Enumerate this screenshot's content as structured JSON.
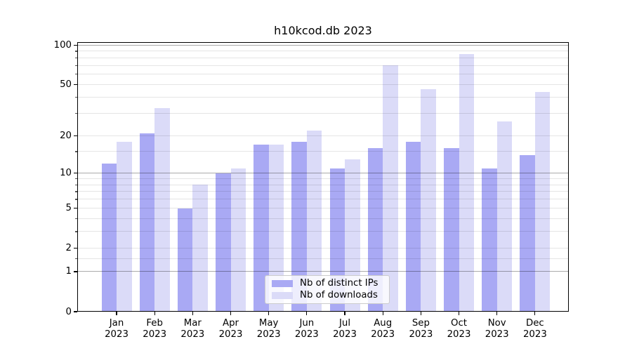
{
  "title": "h10kcod.db 2023",
  "legend": {
    "items": [
      {
        "label": "Nb of distinct IPs",
        "color": "#a9a9f4"
      },
      {
        "label": "Nb of downloads",
        "color": "#dbdbf8"
      }
    ],
    "position": "lower center"
  },
  "y_axis": {
    "tick_labels": [
      "0",
      "1",
      "2",
      "5",
      "10",
      "20",
      "50",
      "100"
    ]
  },
  "x_axis": {
    "months": [
      "Jan",
      "Feb",
      "Mar",
      "Apr",
      "May",
      "Jun",
      "Jul",
      "Aug",
      "Sep",
      "Oct",
      "Nov",
      "Dec"
    ],
    "year": "2023"
  },
  "chart_data": {
    "type": "bar",
    "title": "h10kcod.db 2023",
    "categories": [
      "Jan 2023",
      "Feb 2023",
      "Mar 2023",
      "Apr 2023",
      "May 2023",
      "Jun 2023",
      "Jul 2023",
      "Aug 2023",
      "Sep 2023",
      "Oct 2023",
      "Nov 2023",
      "Dec 2023"
    ],
    "series": [
      {
        "name": "Nb of distinct IPs",
        "color": "#a9a9f4",
        "values": [
          12,
          21,
          5,
          10,
          17,
          18,
          11,
          16,
          18,
          16,
          11,
          14
        ]
      },
      {
        "name": "Nb of downloads",
        "color": "#dbdbf8",
        "values": [
          18,
          33,
          8,
          11,
          17,
          22,
          13,
          70,
          46,
          85,
          26,
          44
        ]
      }
    ],
    "xlabel": "",
    "ylabel": "",
    "yscale": "log1p",
    "ylim": [
      0,
      105
    ],
    "yticks_labeled": [
      0,
      1,
      2,
      5,
      10,
      20,
      50,
      100
    ],
    "yticks_major_grid": [
      1,
      10,
      100
    ],
    "yticks_minor_grid": [
      1.5,
      2,
      3,
      4,
      5,
      6,
      7,
      8,
      9,
      15,
      20,
      30,
      40,
      50,
      60,
      70,
      80,
      90
    ],
    "grid": true,
    "legend_position": "lower center"
  }
}
